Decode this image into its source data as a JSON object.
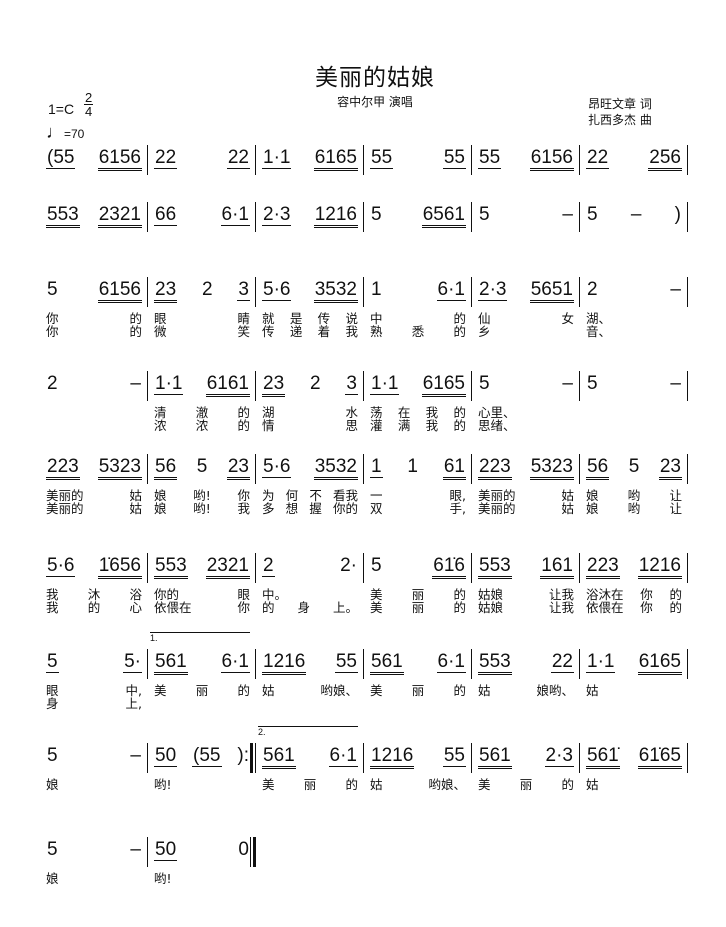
{
  "header": {
    "title": "美丽的姑娘",
    "singer": "容中尔甲  演唱",
    "lyricist": "昂旺文章 词",
    "composer": "扎西多杰 曲",
    "key": "1=C",
    "time_top": "2",
    "time_bottom": "4",
    "tempo_note": "♩",
    "tempo_value": "=70"
  },
  "systems": [
    {
      "measures": [
        {
          "g": [
            {
              "t": "(55",
              "b": 1
            },
            {
              "t": "6156",
              "b": 2
            }
          ]
        },
        {
          "g": [
            {
              "t": "22",
              "b": 1
            },
            {
              "t": "22",
              "b": 1
            }
          ]
        },
        {
          "g": [
            {
              "t": "1·1",
              "b": 1
            },
            {
              "t": "6165",
              "b": 2
            }
          ]
        },
        {
          "g": [
            {
              "t": "55",
              "b": 1
            },
            {
              "t": "55",
              "b": 1
            }
          ]
        },
        {
          "g": [
            {
              "t": "55",
              "b": 1
            },
            {
              "t": "6156",
              "b": 2
            }
          ]
        },
        {
          "g": [
            {
              "t": "22",
              "b": 1
            },
            {
              "t": "256",
              "b": 2
            }
          ]
        }
      ]
    },
    {
      "measures": [
        {
          "g": [
            {
              "t": "553",
              "b": 2
            },
            {
              "t": "2321",
              "b": 2
            }
          ]
        },
        {
          "g": [
            {
              "t": "66",
              "b": 1
            },
            {
              "t": "6·1",
              "b": 1
            }
          ]
        },
        {
          "g": [
            {
              "t": "2·3",
              "b": 1
            },
            {
              "t": "1216",
              "b": 2
            }
          ]
        },
        {
          "g": [
            {
              "t": "5",
              "b": 0
            },
            {
              "t": "6561",
              "b": 2
            }
          ]
        },
        {
          "g": [
            {
              "t": "5",
              "b": 0
            },
            {
              "t": "–",
              "b": 0
            }
          ]
        },
        {
          "g": [
            {
              "t": "5",
              "b": 0
            },
            {
              "t": "–",
              "b": 0
            },
            {
              "t": ")",
              "b": 0
            }
          ]
        }
      ]
    },
    {
      "measures": [
        {
          "g": [
            {
              "t": "5",
              "b": 0
            },
            {
              "t": "6156",
              "b": 2
            }
          ],
          "v1": [
            "你",
            "的"
          ],
          "v2": [
            "你",
            "的"
          ]
        },
        {
          "g": [
            {
              "t": "23",
              "b": 2
            },
            {
              "t": "2",
              "b": 0
            },
            {
              "t": "3",
              "b": 1
            }
          ],
          "v1": [
            "眼",
            "睛"
          ],
          "v2": [
            "微",
            "笑"
          ]
        },
        {
          "g": [
            {
              "t": "5·6",
              "b": 1
            },
            {
              "t": "3532",
              "b": 2
            }
          ],
          "v1": [
            "就",
            "是",
            "传",
            "说"
          ],
          "v2": [
            "传",
            "递",
            "着",
            "我"
          ]
        },
        {
          "g": [
            {
              "t": "1",
              "b": 0
            },
            {
              "t": "6·1",
              "b": 1
            }
          ],
          "v1": [
            "中",
            "的"
          ],
          "v2": [
            "熟",
            "悉",
            "的"
          ]
        },
        {
          "g": [
            {
              "t": "2·3",
              "b": 1
            },
            {
              "t": "5651",
              "b": 2
            }
          ],
          "v1": [
            "仙",
            "女"
          ],
          "v2": [
            "乡"
          ]
        },
        {
          "g": [
            {
              "t": "2",
              "b": 0
            },
            {
              "t": "–",
              "b": 0
            }
          ],
          "v1": [
            "湖、"
          ],
          "v2": [
            "音、"
          ]
        }
      ]
    },
    {
      "measures": [
        {
          "g": [
            {
              "t": "2",
              "b": 0
            },
            {
              "t": "–",
              "b": 0
            }
          ]
        },
        {
          "g": [
            {
              "t": "1·1",
              "b": 1
            },
            {
              "t": "6161",
              "b": 2
            }
          ],
          "v1": [
            "清",
            "澈",
            "的"
          ],
          "v2": [
            "浓",
            "浓",
            "的"
          ]
        },
        {
          "g": [
            {
              "t": "23",
              "b": 2
            },
            {
              "t": "2",
              "b": 0
            },
            {
              "t": "3",
              "b": 1
            }
          ],
          "v1": [
            "湖",
            "水"
          ],
          "v2": [
            "情",
            "思"
          ]
        },
        {
          "g": [
            {
              "t": "1·1",
              "b": 1
            },
            {
              "t": "6165",
              "b": 2
            }
          ],
          "v1": [
            "荡",
            "在",
            "我",
            "的"
          ],
          "v2": [
            "灌",
            "满",
            "我",
            "的"
          ]
        },
        {
          "g": [
            {
              "t": "5",
              "b": 0
            },
            {
              "t": "–",
              "b": 0
            }
          ],
          "v1": [
            "心里、"
          ],
          "v2": [
            "思绪、"
          ]
        },
        {
          "g": [
            {
              "t": "5",
              "b": 0
            },
            {
              "t": "–",
              "b": 0
            }
          ]
        }
      ]
    },
    {
      "measures": [
        {
          "g": [
            {
              "t": "223",
              "b": 2
            },
            {
              "t": "5323",
              "b": 2
            }
          ],
          "v1": [
            "美丽的",
            "姑"
          ],
          "v2": [
            "美丽的",
            "姑"
          ]
        },
        {
          "g": [
            {
              "t": "56",
              "b": 2
            },
            {
              "t": "5",
              "b": 0
            },
            {
              "t": "23",
              "b": 2
            }
          ],
          "v1": [
            "娘",
            "哟!",
            "你"
          ],
          "v2": [
            "娘",
            "哟!",
            "我"
          ]
        },
        {
          "g": [
            {
              "t": "5·6",
              "b": 1
            },
            {
              "t": "3532",
              "b": 2
            }
          ],
          "v1": [
            "为",
            "何",
            "不",
            "看我"
          ],
          "v2": [
            "多",
            "想",
            "握",
            "你的"
          ]
        },
        {
          "g": [
            {
              "t": "1",
              "b": 1
            },
            {
              "t": "1",
              "b": 0
            },
            {
              "t": "61",
              "b": 2
            }
          ],
          "v1": [
            "一",
            "眼,"
          ],
          "v2": [
            "双",
            "手,"
          ]
        },
        {
          "g": [
            {
              "t": "223",
              "b": 2
            },
            {
              "t": "5323",
              "b": 2
            }
          ],
          "v1": [
            "美丽的",
            "姑"
          ],
          "v2": [
            "美丽的",
            "姑"
          ]
        },
        {
          "g": [
            {
              "t": "56",
              "b": 2
            },
            {
              "t": "5",
              "b": 0
            },
            {
              "t": "23",
              "b": 2
            }
          ],
          "v1": [
            "娘",
            "哟",
            "让"
          ],
          "v2": [
            "娘",
            "哟",
            "让"
          ]
        }
      ]
    },
    {
      "measures": [
        {
          "g": [
            {
              "t": "5·6",
              "b": 1
            },
            {
              "t": "1̇656",
              "b": 2
            }
          ],
          "v1": [
            "我",
            "沐",
            "浴"
          ],
          "v2": [
            "我",
            "的",
            "心"
          ]
        },
        {
          "g": [
            {
              "t": "553",
              "b": 2
            },
            {
              "t": "2321",
              "b": 2
            }
          ],
          "v1": [
            "你的",
            "眼"
          ],
          "v2": [
            "依偎在",
            "你"
          ]
        },
        {
          "g": [
            {
              "t": "2",
              "b": 1
            },
            {
              "t": "2·",
              "b": 0
            }
          ],
          "v1": [
            "中。"
          ],
          "v2": [
            "的",
            "身",
            "上。"
          ]
        },
        {
          "g": [
            {
              "t": "5",
              "b": 0
            },
            {
              "t": "61̇6",
              "b": 2
            }
          ],
          "v1": [
            "美",
            "丽",
            "的"
          ],
          "v2": [
            "美",
            "丽",
            "的"
          ]
        },
        {
          "g": [
            {
              "t": "553",
              "b": 2
            },
            {
              "t": "161",
              "b": 2
            }
          ],
          "v1": [
            "姑娘",
            "让我"
          ],
          "v2": [
            "姑娘",
            "让我"
          ]
        },
        {
          "g": [
            {
              "t": "223",
              "b": 2
            },
            {
              "t": "1216",
              "b": 2
            }
          ],
          "v1": [
            "浴沐在",
            "你",
            "的"
          ],
          "v2": [
            "依偎在",
            "你",
            "的"
          ]
        }
      ]
    },
    {
      "measures": [
        {
          "g": [
            {
              "t": "5",
              "b": 1
            },
            {
              "t": "5·",
              "b": 1
            }
          ],
          "v1": [
            "眼",
            "中,"
          ],
          "v2": [
            "身",
            "上,"
          ]
        },
        {
          "volta": "1.",
          "g": [
            {
              "t": "561",
              "b": 2
            },
            {
              "t": "6·1",
              "b": 1
            }
          ],
          "v1": [
            "美",
            "丽",
            "的"
          ]
        },
        {
          "g": [
            {
              "t": "1216",
              "b": 2
            },
            {
              "t": "55",
              "b": 1
            }
          ],
          "v1": [
            "姑",
            "哟娘、"
          ]
        },
        {
          "g": [
            {
              "t": "561",
              "b": 2
            },
            {
              "t": "6·1",
              "b": 1
            }
          ],
          "v1": [
            "美",
            "丽",
            "的"
          ]
        },
        {
          "g": [
            {
              "t": "553",
              "b": 2
            },
            {
              "t": "22",
              "b": 1
            }
          ],
          "v1": [
            "姑",
            "娘哟、"
          ]
        },
        {
          "g": [
            {
              "t": "1·1",
              "b": 1
            },
            {
              "t": "6165",
              "b": 2
            }
          ],
          "v1": [
            "姑"
          ]
        }
      ]
    },
    {
      "measures": [
        {
          "g": [
            {
              "t": "5",
              "b": 0
            },
            {
              "t": "–",
              "b": 0
            }
          ],
          "v1": [
            "娘"
          ]
        },
        {
          "bar": "rep",
          "g": [
            {
              "t": "50",
              "b": 1
            },
            {
              "t": "(55",
              "b": 1
            },
            {
              "t": "):",
              "b": 0
            }
          ],
          "v1": [
            "哟!"
          ]
        },
        {
          "volta": "2.",
          "g": [
            {
              "t": "561",
              "b": 2
            },
            {
              "t": "6·1",
              "b": 1
            }
          ],
          "v1": [
            "美",
            "丽",
            "的"
          ]
        },
        {
          "g": [
            {
              "t": "1216",
              "b": 2
            },
            {
              "t": "55",
              "b": 1
            }
          ],
          "v1": [
            "姑",
            "哟娘、"
          ]
        },
        {
          "g": [
            {
              "t": "561",
              "b": 2
            },
            {
              "t": "2·3",
              "b": 1
            }
          ],
          "v1": [
            "美",
            "丽",
            "的"
          ]
        },
        {
          "g": [
            {
              "t": "561̇",
              "b": 2
            },
            {
              "t": "61̇65",
              "b": 2
            }
          ],
          "v1": [
            "姑"
          ]
        }
      ]
    },
    {
      "measures": [
        {
          "g": [
            {
              "t": "5",
              "b": 0
            },
            {
              "t": "–",
              "b": 0
            }
          ],
          "v1": [
            "娘"
          ]
        },
        {
          "bar": "dbl",
          "g": [
            {
              "t": "50",
              "b": 1
            },
            {
              "t": "0",
              "b": 0
            }
          ],
          "v1": [
            "哟!"
          ]
        }
      ]
    }
  ]
}
